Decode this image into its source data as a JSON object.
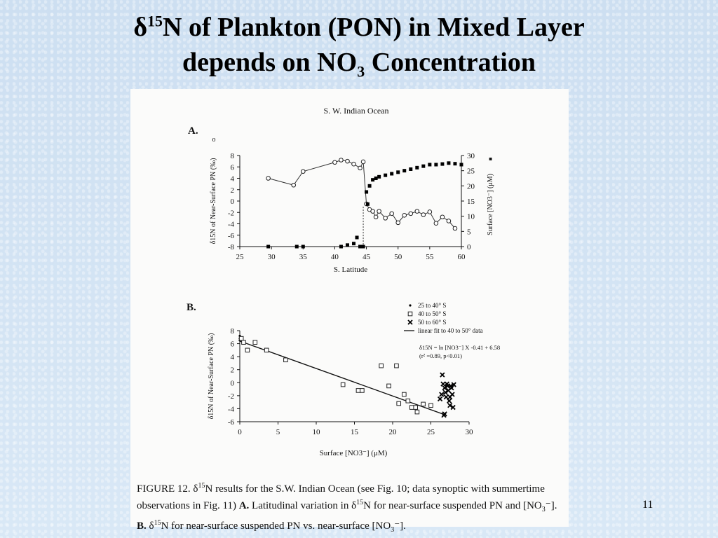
{
  "slide": {
    "title_delta": "δ",
    "title_sup": "15",
    "title_line1_rest": "N of Plankton (PON) in Mixed Layer",
    "title_line2_pre": "depends on NO",
    "title_line2_sub": "3",
    "title_line2_post": " Concentration",
    "page_number": "11"
  },
  "caption": {
    "p1": "FIGURE 12.  δ",
    "sup1": "15",
    "p2": "N results for the S.W. Indian Ocean (see Fig. 10; data synoptic with summertime observations in Fig. 11)   ",
    "bold_a": "A.",
    "p3": " Latitudinal variation in δ",
    "sup2": "15",
    "p4": "N for near-surface suspended PN and [NO",
    "sub1": "3",
    "p5": "⁻].  ",
    "bold_b": "B.",
    "p6": " δ",
    "sup3": "15",
    "p7": "N for near-surface suspended PN vs. near-surface [NO",
    "sub2": "3",
    "p8": "⁻]."
  },
  "chart_data": [
    {
      "type": "line",
      "panel_label": "A.",
      "title": "S. W. Indian Ocean",
      "xlabel": "S. Latitude",
      "ylabel": "δ15N of Near-Surface PN (‰)",
      "ylabel_marker": "o",
      "y2label": "Surface [NO3⁻] (μM)",
      "y2label_marker": "■",
      "xlim": [
        25,
        60
      ],
      "ylim": [
        -8,
        8
      ],
      "y2lim": [
        0,
        30
      ],
      "x_ticks": [
        "25",
        "30",
        "35",
        "40",
        "45",
        "50",
        "55",
        "60"
      ],
      "y_ticks": [
        "8",
        "6",
        "4",
        "2",
        "0",
        "-2",
        "-4",
        "-6",
        "-8"
      ],
      "y2_ticks": [
        "30",
        "25",
        "20",
        "15",
        "10",
        "5",
        "0"
      ],
      "series": [
        {
          "marker": "open-circle",
          "color": "#222222",
          "x": [
            29.5,
            33.5,
            35,
            40,
            41,
            42,
            43,
            44,
            44.5,
            45,
            45.5,
            46,
            46.5,
            47,
            48,
            49,
            50,
            51,
            52,
            53,
            54,
            55,
            56,
            57,
            58,
            59
          ],
          "y": [
            4,
            2.8,
            5.2,
            6.8,
            7.2,
            7,
            6.5,
            5.8,
            6.9,
            -0.5,
            -1.5,
            -1.8,
            -2.8,
            -1.8,
            -3,
            -2.2,
            -3.8,
            -2.5,
            -2.2,
            -1.8,
            -2.4,
            -1.9,
            -3.9,
            -2.8,
            -3.5,
            -4.8
          ]
        },
        {
          "marker": "filled-square",
          "color": "#000000",
          "axis": "right",
          "x": [
            29.5,
            34,
            35,
            41,
            42,
            43,
            43.5,
            44,
            44.5,
            45,
            45.2,
            45.5,
            46,
            46.5,
            47,
            48,
            49,
            50,
            51,
            52,
            53,
            54,
            55,
            56,
            57,
            58,
            59,
            60
          ],
          "y": [
            0,
            0,
            0,
            0,
            0.5,
            1,
            3,
            0,
            0,
            18,
            14,
            20,
            22,
            22.5,
            23,
            23.5,
            24,
            24.5,
            25,
            25.5,
            26,
            26.5,
            27,
            27,
            27.2,
            27.5,
            27.3,
            27
          ]
        }
      ]
    },
    {
      "type": "scatter",
      "panel_label": "B.",
      "xlabel": "Surface [NO3⁻] (μM)",
      "ylabel": "δ15N of Near-Surface PN (‰)",
      "xlim": [
        0,
        30
      ],
      "ylim": [
        -6,
        8
      ],
      "x_ticks": [
        "0",
        "5",
        "10",
        "15",
        "20",
        "25",
        "30"
      ],
      "y_ticks": [
        "8",
        "6",
        "4",
        "2",
        "0",
        "-2",
        "-4",
        "-6"
      ],
      "legend": [
        {
          "marker": "dot",
          "label": "25 to 40° S"
        },
        {
          "marker": "open-square",
          "label": "40 to 50° S"
        },
        {
          "marker": "x",
          "label": "50 to 60° S"
        },
        {
          "marker": "line",
          "label": "linear fit to 40 to 50° data"
        }
      ],
      "fit_equation": "δ15N = ln [NO3⁻]  X -0.41 + 6.58",
      "fit_stats": "(r² =0.89, p<0.01)",
      "series": [
        {
          "name": "25 to 40° S",
          "marker": "dot",
          "x": [
            0,
            0,
            0,
            0.1
          ],
          "y": [
            7.2,
            6.8,
            6.5,
            6.9
          ]
        },
        {
          "name": "40 to 50° S",
          "marker": "open-square",
          "x": [
            0.2,
            0.5,
            1,
            2,
            3.5,
            6,
            13.5,
            15.5,
            16,
            18.5,
            19.5,
            20.5,
            20.8,
            21.5,
            22,
            22.5,
            23,
            23.2,
            24,
            25
          ],
          "y": [
            6.8,
            6.2,
            5,
            6.2,
            5,
            3.5,
            -0.3,
            -1.2,
            -1.2,
            2.6,
            -0.5,
            2.6,
            -3.2,
            -1.8,
            -2.8,
            -3.8,
            -3.8,
            -4.5,
            -3.3,
            -3.5
          ],
          "fit_line": {
            "x": [
              0,
              27
            ],
            "y": [
              6.4,
              -5
            ]
          }
        },
        {
          "name": "50 to 60° S",
          "marker": "x",
          "x": [
            26.5,
            26.6,
            26.8,
            26.9,
            27,
            27.1,
            27.2,
            27.3,
            27.4,
            27.5,
            27.6,
            27.7,
            27.8,
            28,
            26.2,
            26.4,
            26.7,
            27.9,
            27.5,
            26.8
          ],
          "y": [
            1.2,
            -0.2,
            -0.8,
            -1.5,
            -2.2,
            -0.2,
            -0.5,
            -1.2,
            -2.8,
            -3.5,
            -0.5,
            -0.8,
            -1.8,
            -0.3,
            -2.5,
            -1.8,
            -5,
            -3.8,
            -2.2,
            -4.8
          ]
        }
      ]
    }
  ]
}
